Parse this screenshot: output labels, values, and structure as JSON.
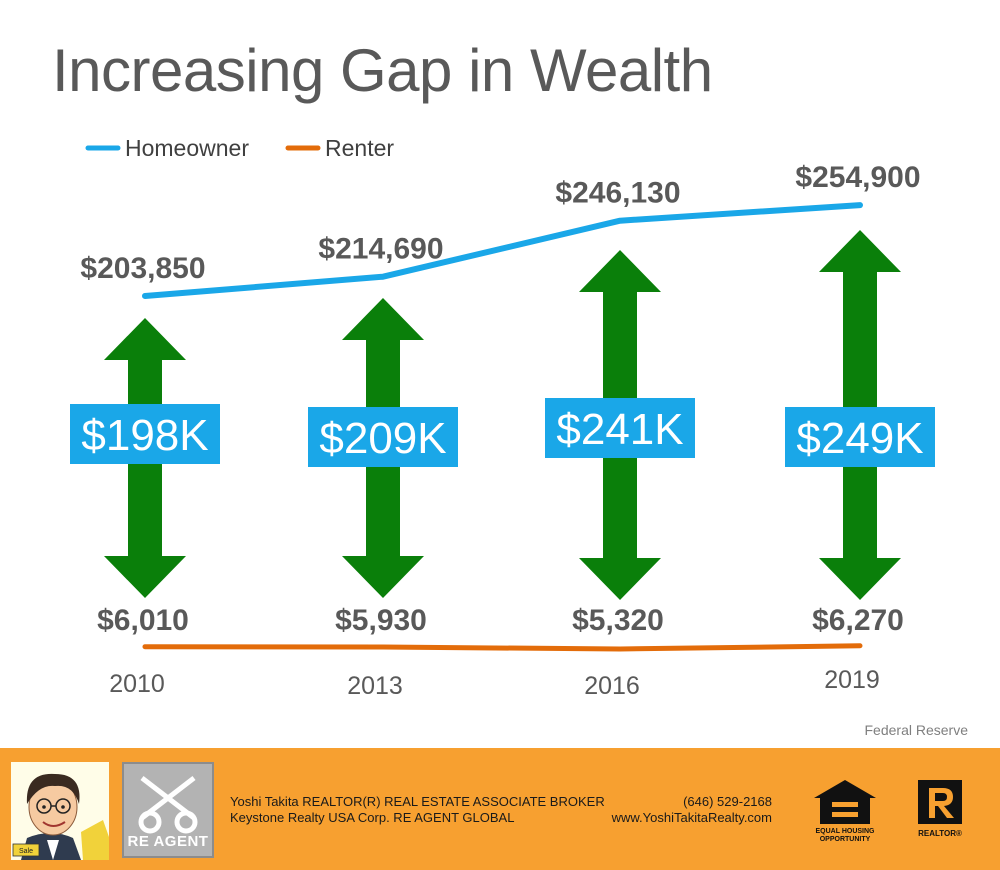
{
  "title": "Increasing Gap in Wealth",
  "source": "Federal Reserve",
  "chart_data": {
    "type": "line",
    "title": "Increasing Gap in Wealth",
    "categories": [
      "2010",
      "2013",
      "2016",
      "2019"
    ],
    "series": [
      {
        "name": "Homeowner",
        "color": "#1aa7e8",
        "values": [
          203850,
          214690,
          246130,
          254900
        ],
        "labels": [
          "$203,850",
          "$214,690",
          "$246,130",
          "$254,900"
        ]
      },
      {
        "name": "Renter",
        "color": "#e36c0a",
        "values": [
          6010,
          5930,
          5320,
          6270
        ],
        "labels": [
          "$6,010",
          "$5,930",
          "$5,320",
          "$6,270"
        ]
      }
    ],
    "gaps": [
      "$198K",
      "$209K",
      "$241K",
      "$249K"
    ],
    "gap_color": "#1aa7e8",
    "arrow_color": "#0a7f0a",
    "legend": "top-left"
  },
  "footer": {
    "line1_left": "Yoshi Takita REALTOR(R) REAL ESTATE ASSOCIATE BROKER",
    "line2_left": "Keystone Realty USA Corp.  RE AGENT GLOBAL",
    "line1_right": "(646) 529-2168",
    "line2_right": "www.YoshiTakitaRealty.com",
    "agent_logo_text": "RE AGENT",
    "eho_caption": "EQUAL HOUSING OPPORTUNITY",
    "realtor_caption": "REALTOR®",
    "photo_tag": "Sale",
    "background_color": "#f7a030"
  }
}
